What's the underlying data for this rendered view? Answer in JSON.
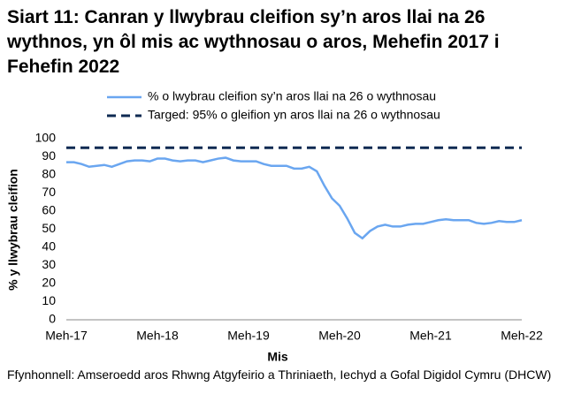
{
  "chart_data": {
    "type": "line",
    "title": "Siart 11: Canran y llwybrau cleifion sy’n aros llai na 26 wythnos, yn ôl mis ac wythnosau o aros, Mehefin 2017 i Fehefin 2022",
    "x_label": "Mis",
    "y_label": "% y llwybrau cleifion",
    "source": "Ffynhonnell: Amseroedd aros Rhwng Atgyfeirio a Thriniaeth, Iechyd a Gofal Digidol Cymru (DHCW)",
    "categories": [
      "Meh-17",
      null,
      null,
      null,
      null,
      null,
      null,
      null,
      null,
      null,
      null,
      null,
      "Meh-18",
      null,
      null,
      null,
      null,
      null,
      null,
      null,
      null,
      null,
      null,
      null,
      "Meh-19",
      null,
      null,
      null,
      null,
      null,
      null,
      null,
      null,
      null,
      null,
      null,
      "Meh-20",
      null,
      null,
      null,
      null,
      null,
      null,
      null,
      null,
      null,
      null,
      null,
      "Meh-21",
      null,
      null,
      null,
      null,
      null,
      null,
      null,
      null,
      null,
      null,
      null,
      "Meh-22"
    ],
    "series": [
      {
        "name": "% o lwybrau cleifion sy’n aros llai na 26 o wythnosau",
        "color": "#6aa6f0",
        "style": "solid",
        "values": [
          87,
          87,
          86,
          84.5,
          85,
          85.5,
          84.5,
          86,
          87.5,
          88,
          88,
          87.5,
          89,
          89,
          88,
          87.5,
          88,
          88,
          87,
          88,
          89,
          89.5,
          88,
          87.5,
          87.5,
          87.5,
          86,
          85,
          85,
          85,
          83.5,
          83.5,
          84.5,
          82,
          74,
          67,
          63,
          56,
          48,
          45,
          49,
          51.5,
          52.5,
          51.5,
          51.5,
          52.5,
          53,
          53,
          54,
          55,
          55.5,
          55,
          55,
          55,
          53.5,
          53,
          53.5,
          54.5,
          54,
          54,
          55
        ]
      },
      {
        "name": "Targed: 95% o gleifion yn aros llai na 26 o wythnosau",
        "color": "#0e2a52",
        "style": "dashed",
        "values": [
          95,
          95,
          95,
          95,
          95,
          95,
          95,
          95,
          95,
          95,
          95,
          95,
          95,
          95,
          95,
          95,
          95,
          95,
          95,
          95,
          95,
          95,
          95,
          95,
          95,
          95,
          95,
          95,
          95,
          95,
          95,
          95,
          95,
          95,
          95,
          95,
          95,
          95,
          95,
          95,
          95,
          95,
          95,
          95,
          95,
          95,
          95,
          95,
          95,
          95,
          95,
          95,
          95,
          95,
          95,
          95,
          95,
          95,
          95,
          95,
          95
        ]
      }
    ],
    "ylim": [
      0,
      100
    ],
    "yticks": [
      0,
      10,
      20,
      30,
      40,
      50,
      60,
      70,
      80,
      90,
      100
    ],
    "grid": false,
    "legend": "top"
  }
}
